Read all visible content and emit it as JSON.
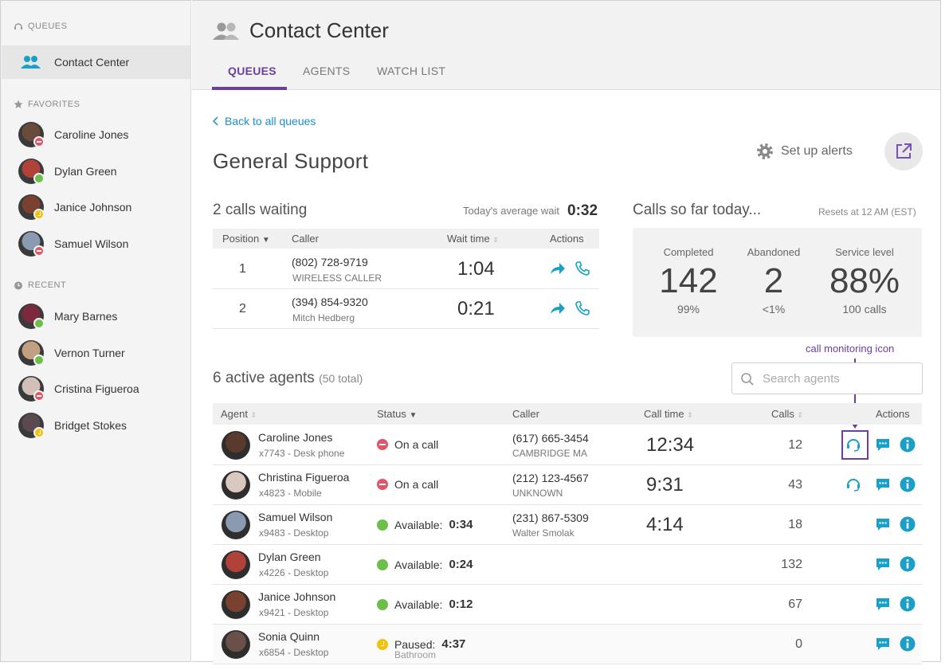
{
  "sidebar": {
    "queues_header": "QUEUES",
    "queue_item": "Contact Center",
    "favorites_header": "FAVORITES",
    "favorites": [
      {
        "name": "Caroline Jones",
        "status": "busy",
        "color": "#6a4a3a"
      },
      {
        "name": "Dylan Green",
        "status": "avail",
        "color": "#b0423a"
      },
      {
        "name": "Janice Johnson",
        "status": "away",
        "color": "#7a4030"
      },
      {
        "name": "Samuel Wilson",
        "status": "busy",
        "color": "#8a9ab0"
      }
    ],
    "recent_header": "RECENT",
    "recent": [
      {
        "name": "Mary Barnes",
        "status": "avail",
        "color": "#7a2a3a"
      },
      {
        "name": "Vernon Turner",
        "status": "avail",
        "color": "#c0a080"
      },
      {
        "name": "Cristina Figueroa",
        "status": "busy",
        "color": "#d0c0b8"
      },
      {
        "name": "Bridget Stokes",
        "status": "away",
        "color": "#5a4a50"
      }
    ]
  },
  "header": {
    "title": "Contact Center",
    "tabs": [
      {
        "label": "QUEUES"
      },
      {
        "label": "AGENTS"
      },
      {
        "label": "WATCH LIST"
      }
    ]
  },
  "queue": {
    "back_link": "Back to all queues",
    "title": "General Support",
    "alerts_label": "Set up alerts"
  },
  "calls_waiting": {
    "title": "2 calls waiting",
    "avg_label": "Today's average wait",
    "avg_value": "0:32",
    "columns": {
      "position": "Position",
      "caller": "Caller",
      "wait": "Wait time",
      "actions": "Actions"
    },
    "rows": [
      {
        "position": "1",
        "phone": "(802) 728-9719",
        "sub": "WIRELESS CALLER",
        "wait": "1:04"
      },
      {
        "position": "2",
        "phone": "(394) 854-9320",
        "sub": "Mitch Hedberg",
        "wait": "0:21"
      }
    ]
  },
  "stats": {
    "title": "Calls so far today...",
    "resets": "Resets at 12 AM (EST)",
    "items": [
      {
        "label": "Completed",
        "value": "142",
        "sub": "99%"
      },
      {
        "label": "Abandoned",
        "value": "2",
        "sub": "<1%"
      },
      {
        "label": "Service level",
        "value": "88%",
        "sub": "100 calls"
      }
    ]
  },
  "agents": {
    "title": "6 active agents",
    "total": "(50 total)",
    "search_placeholder": "Search agents",
    "annotation": "call monitoring icon",
    "columns": {
      "agent": "Agent",
      "status": "Status",
      "caller": "Caller",
      "call_time": "Call time",
      "calls": "Calls",
      "actions": "Actions"
    },
    "rows": [
      {
        "name": "Caroline Jones",
        "ext": "x7743 - Desk phone",
        "status_type": "busy",
        "status": "On a call",
        "status_time": "",
        "reason": "",
        "phone": "(617) 665-3454",
        "place": "CAMBRIDGE MA",
        "call_time": "12:34",
        "calls": "12",
        "monitor": true,
        "color": "#5a3a2a"
      },
      {
        "name": "Christina Figueroa",
        "ext": "x4823 - Mobile",
        "status_type": "busy",
        "status": "On a call",
        "status_time": "",
        "reason": "",
        "phone": "(212) 123-4567",
        "place": "UNKNOWN",
        "call_time": "9:31",
        "calls": "43",
        "monitor": true,
        "color": "#d8c8c0"
      },
      {
        "name": "Samuel Wilson",
        "ext": "x9483 - Desktop",
        "status_type": "avail",
        "status": "Available:",
        "status_time": "0:34",
        "reason": "",
        "phone": "(231) 867-5309",
        "place": "Walter Smolak",
        "call_time": "4:14",
        "calls": "18",
        "monitor": false,
        "color": "#8a9ab0"
      },
      {
        "name": "Dylan Green",
        "ext": "x4226 - Desktop",
        "status_type": "avail",
        "status": "Available:",
        "status_time": "0:24",
        "reason": "",
        "phone": "",
        "place": "",
        "call_time": "",
        "calls": "132",
        "monitor": false,
        "color": "#b0423a"
      },
      {
        "name": "Janice Johnson",
        "ext": "x9421 - Desktop",
        "status_type": "avail",
        "status": "Available:",
        "status_time": "0:12",
        "reason": "",
        "phone": "",
        "place": "",
        "call_time": "",
        "calls": "67",
        "monitor": false,
        "color": "#7a4030"
      },
      {
        "name": "Sonia Quinn",
        "ext": "x6854 - Desktop",
        "status_type": "away",
        "status": "Paused:",
        "status_time": "4:37",
        "reason": "Bathroom",
        "phone": "",
        "place": "",
        "call_time": "",
        "calls": "0",
        "monitor": false,
        "color": "#6a5048"
      }
    ]
  },
  "colors": {
    "accent": "#6b3fa0",
    "link": "#1a8fc9",
    "action": "#1aa0c8"
  }
}
